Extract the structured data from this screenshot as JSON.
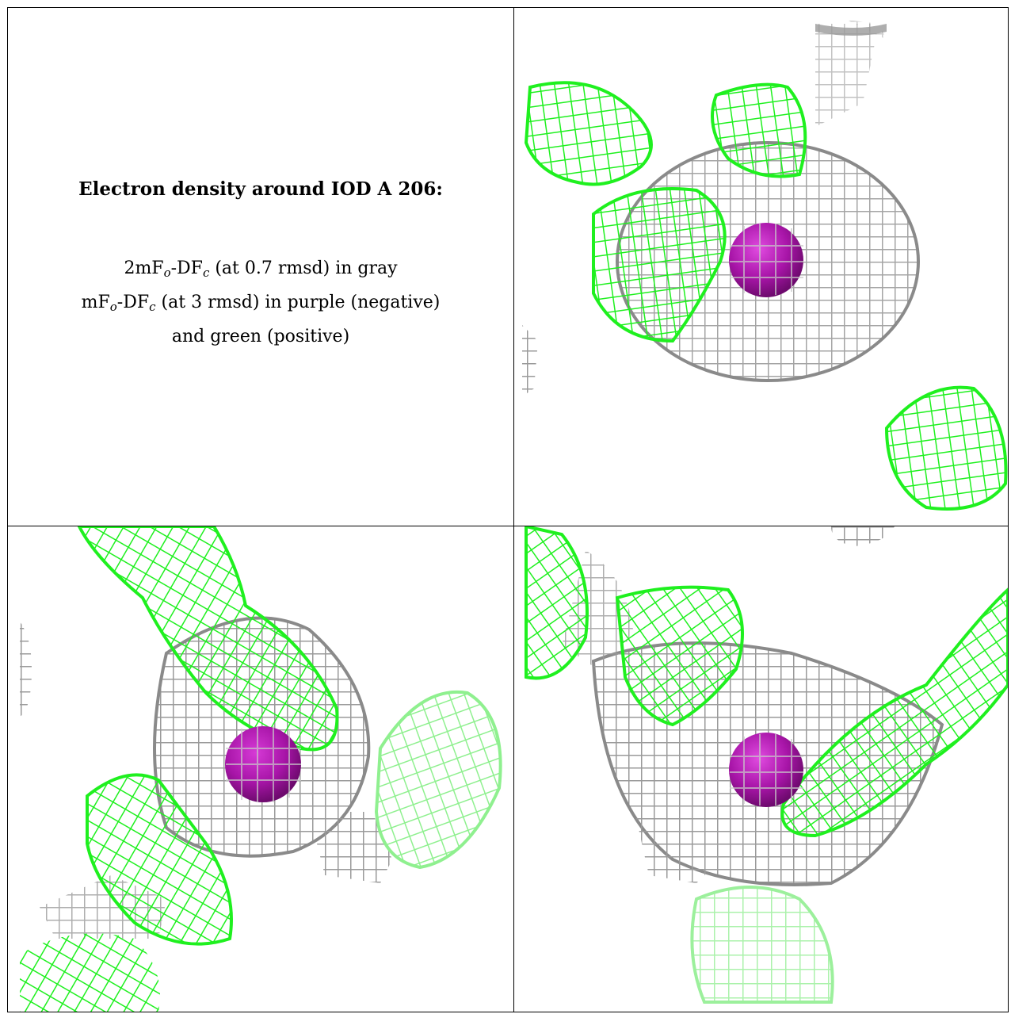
{
  "title": "Electron density around IOD A 206:",
  "legend": {
    "line1": {
      "a": "2mF",
      "a_sub": "o",
      "b": "-DF",
      "b_sub": "c",
      "rest": " (at 0.7 rmsd) in gray"
    },
    "line2": {
      "a": "mF",
      "a_sub": "o",
      "b": "-DF",
      "b_sub": "c",
      "rest": " (at 3 rmsd) in purple (negative)"
    },
    "line3": "and green (positive)"
  },
  "colors": {
    "gray_mesh": "#a9a9a9",
    "green_mesh": "#22f022",
    "atom": "#b21fb2",
    "border": "#000000"
  },
  "panels": [
    {
      "name": "view-top-right",
      "icon": "iodine-atom"
    },
    {
      "name": "view-bottom-left",
      "icon": "iodine-atom"
    },
    {
      "name": "view-bottom-right",
      "icon": "iodine-atom"
    }
  ]
}
